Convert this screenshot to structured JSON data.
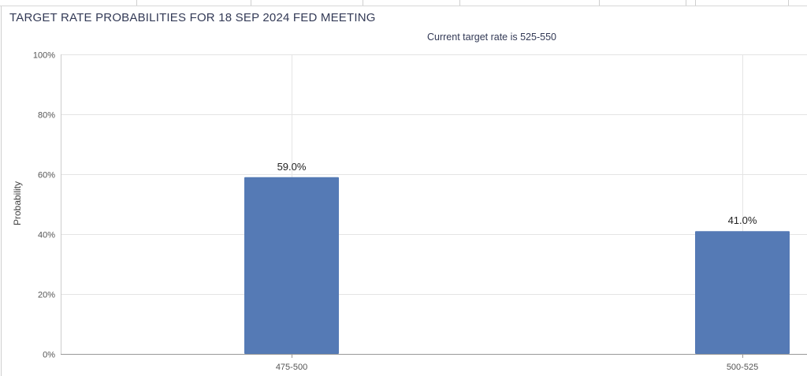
{
  "chart_data": {
    "type": "bar",
    "title": "TARGET RATE PROBABILITIES FOR 18 SEP 2024 FED MEETING",
    "subtitle": "Current target rate is 525-550",
    "ylabel": "Probability",
    "xlabel": "",
    "categories": [
      "475-500",
      "500-525"
    ],
    "values": [
      59.0,
      41.0
    ],
    "value_labels": [
      "59.0%",
      "41.0%"
    ],
    "ylim": [
      0,
      100
    ],
    "yticks": [
      0,
      20,
      40,
      60,
      80,
      100
    ],
    "ytick_labels": [
      "0%",
      "20%",
      "40%",
      "60%",
      "80%",
      "100%"
    ],
    "grid": true,
    "legend": "none",
    "bar_color": "#557ab5",
    "grid_color": "#e4e4e4"
  }
}
